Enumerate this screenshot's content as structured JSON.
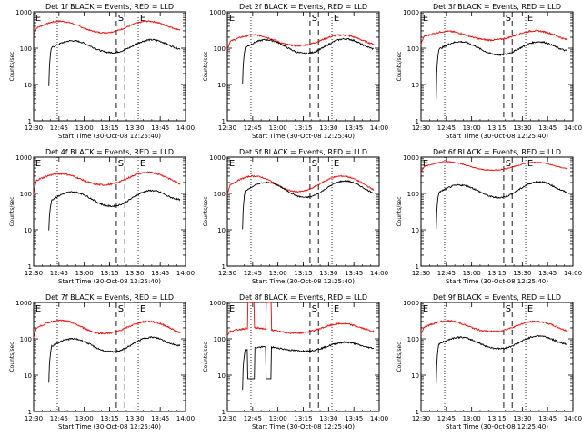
{
  "chart_data": {
    "type": "line",
    "layout": "3x3 grid of panels",
    "xlabel": "Start Time (30-Oct-08 12:25:40)",
    "ylabel": "Counts/sec",
    "x_ticks": [
      "12:30",
      "12:45",
      "13:00",
      "13:15",
      "13:30",
      "13:45",
      "14:00"
    ],
    "y_ticks": [
      "1",
      "10",
      "100",
      "1000"
    ],
    "yscale": "log",
    "ylim": [
      1,
      1000
    ],
    "xlim_minutes_after_12_30": [
      0,
      90
    ],
    "colors": {
      "events": "#000000",
      "lld": "#ff0000",
      "axes": "#000000"
    },
    "panels": [
      {
        "title": "Det 1f BLACK = Events, RED = LLD",
        "markers": {
          "E1": "E",
          "S": "S",
          "E2": "E"
        },
        "dotted_lines": [
          14,
          62
        ],
        "dashed_lines": [
          49,
          54
        ],
        "events_start": 9,
        "lld": {
          "start_y": 230,
          "bump1": 550,
          "trough": 250,
          "bump2": 550,
          "end_y": 300,
          "noise": 0.04
        },
        "events": {
          "start_y": 9,
          "bump1": 160,
          "trough": 70,
          "bump2": 170,
          "end_y": 90,
          "noise": 0.05
        }
      },
      {
        "title": "Det 2f BLACK = Events, RED = LLD",
        "markers": {
          "E1": "E",
          "S": "S",
          "E2": "E"
        },
        "dotted_lines": [
          14,
          62
        ],
        "dashed_lines": [
          49,
          54
        ],
        "events_start": 9,
        "lld": {
          "start_y": 95,
          "bump1": 230,
          "trough": 110,
          "bump2": 230,
          "end_y": 110,
          "noise": 0.05
        },
        "events": {
          "start_y": 10,
          "bump1": 170,
          "trough": 65,
          "bump2": 180,
          "end_y": 90,
          "noise": 0.05
        }
      },
      {
        "title": "Det 3f BLACK = Events, RED = LLD",
        "markers": {
          "E1": "E",
          "S": "S",
          "E2": "E"
        },
        "dotted_lines": [
          14,
          62
        ],
        "dashed_lines": [
          49,
          54
        ],
        "events_start": 9,
        "lld": {
          "start_y": 130,
          "bump1": 290,
          "trough": 160,
          "bump2": 300,
          "end_y": 130,
          "noise": 0.05
        },
        "events": {
          "start_y": 4,
          "bump1": 150,
          "trough": 60,
          "bump2": 150,
          "end_y": 80,
          "noise": 0.05
        }
      },
      {
        "title": "Det 4f BLACK = Events, RED = LLD",
        "markers": {
          "E1": "E",
          "S": "S",
          "E2": "E"
        },
        "dotted_lines": [
          14,
          62
        ],
        "dashed_lines": [
          49,
          54
        ],
        "events_start": 9,
        "lld": {
          "start_y": 90,
          "bump1": 350,
          "trough": 160,
          "bump2": 380,
          "end_y": 140,
          "noise": 0.05
        },
        "events": {
          "start_y": 10,
          "bump1": 110,
          "trough": 40,
          "bump2": 120,
          "end_y": 70,
          "noise": 0.05
        }
      },
      {
        "title": "Det 5f BLACK = Events, RED = LLD",
        "markers": {
          "E1": "E",
          "S": "S",
          "E2": "E"
        },
        "dotted_lines": [
          14,
          62
        ],
        "dashed_lines": [
          49,
          54
        ],
        "events_start": 9,
        "lld": {
          "start_y": 90,
          "bump1": 300,
          "trough": 100,
          "bump2": 300,
          "end_y": 90,
          "noise": 0.04
        },
        "events": {
          "start_y": 10,
          "bump1": 200,
          "trough": 70,
          "bump2": 220,
          "end_y": 90,
          "noise": 0.04
        }
      },
      {
        "title": "Det 6f BLACK = Events, RED = LLD",
        "markers": {
          "E1": "E",
          "S": "S",
          "E2": "E"
        },
        "dotted_lines": [
          14,
          62
        ],
        "dashed_lines": [
          49,
          54
        ],
        "events_start": 9,
        "lld": {
          "start_y": 380,
          "bump1": 750,
          "trough": 420,
          "bump2": 720,
          "end_y": 450,
          "noise": 0.03
        },
        "events": {
          "start_y": 10,
          "bump1": 170,
          "trough": 70,
          "bump2": 210,
          "end_y": 100,
          "noise": 0.05
        }
      },
      {
        "title": "Det 7f BLACK = Events, RED = LLD",
        "markers": {
          "E1": "E",
          "S": "S",
          "E2": "E"
        },
        "dotted_lines": [
          14,
          62
        ],
        "dashed_lines": [
          49,
          54
        ],
        "events_start": 9,
        "lld": {
          "start_y": 110,
          "bump1": 320,
          "trough": 130,
          "bump2": 300,
          "end_y": 110,
          "noise": 0.05
        },
        "events": {
          "start_y": 6,
          "bump1": 100,
          "trough": 40,
          "bump2": 110,
          "end_y": 70,
          "noise": 0.05
        }
      },
      {
        "title": "Det 8f BLACK = Events, RED = LLD",
        "markers": {
          "E1": "E",
          "S": "S",
          "E2": "E"
        },
        "dotted_lines": [
          14,
          62
        ],
        "dashed_lines": [
          49,
          54
        ],
        "events_start": 9,
        "lld": {
          "start_y": 120,
          "bump1": 200,
          "trough": 140,
          "bump2": 260,
          "end_y": 140,
          "noise": 0.05,
          "spikes": [
            [
              12,
              16
            ],
            [
              23,
              26
            ]
          ]
        },
        "events": {
          "start_y": 4,
          "bump1": 60,
          "trough": 45,
          "bump2": 80,
          "end_y": 55,
          "noise": 0.05,
          "drops": [
            [
              12,
              16
            ],
            [
              23,
              26
            ]
          ]
        }
      },
      {
        "title": "Det 9f BLACK = Events, RED = LLD",
        "markers": {
          "E1": "E",
          "S": "S",
          "E2": "E"
        },
        "dotted_lines": [
          14,
          62
        ],
        "dashed_lines": [
          49,
          54
        ],
        "events_start": 9,
        "lld": {
          "start_y": 130,
          "bump1": 310,
          "trough": 150,
          "bump2": 300,
          "end_y": 130,
          "noise": 0.05
        },
        "events": {
          "start_y": 6,
          "bump1": 110,
          "trough": 50,
          "bump2": 120,
          "end_y": 70,
          "noise": 0.05
        }
      }
    ]
  }
}
